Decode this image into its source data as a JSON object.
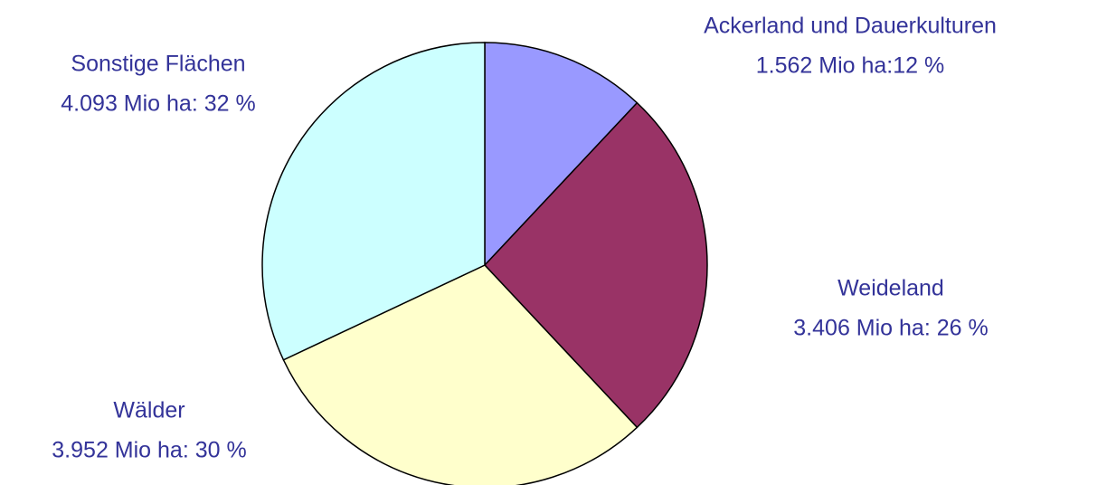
{
  "chart_data": {
    "type": "pie",
    "categories": [
      "Ackerland und Dauerkulturen",
      "Weideland",
      "Wälder",
      "Sonstige Flächen"
    ],
    "values": [
      12,
      26,
      30,
      32
    ],
    "value_labels": [
      "1.562 Mio ha:12 %",
      "3.406 Mio ha: 26 %",
      "3.952 Mio ha: 30 %",
      "4.093 Mio ha: 32 %"
    ],
    "colors": [
      "#9999ff",
      "#993366",
      "#ffffcc",
      "#ccffff"
    ]
  }
}
